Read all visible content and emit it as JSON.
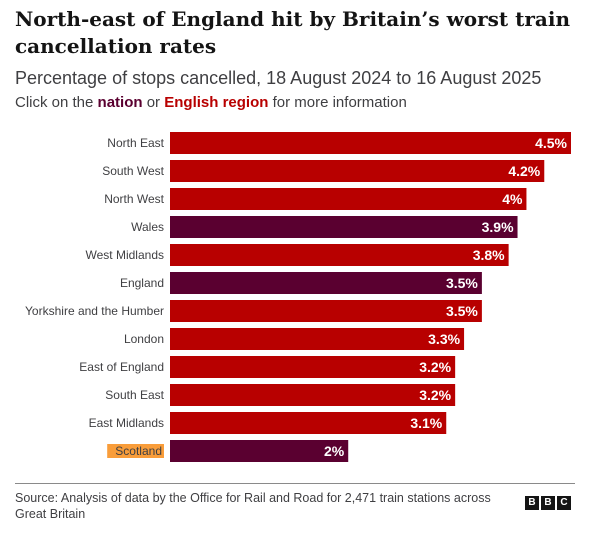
{
  "header": {
    "title": "North-east of England hit by Britain’s worst train cancellation rates",
    "subtitle": "Percentage of stops cancelled, 18 August 2024 to 16 August 2025",
    "instruction": {
      "prefix": "Click on the ",
      "nation": "nation",
      "middle": " or ",
      "region": "English region",
      "suffix": " for more information"
    }
  },
  "colors": {
    "region": "#b80000",
    "nation": "#5a0030",
    "highlight": "#f99d3a"
  },
  "chart_data": {
    "type": "bar",
    "orientation": "horizontal",
    "categories": [
      "North East",
      "South West",
      "North West",
      "Wales",
      "West Midlands",
      "England",
      "Yorkshire and the Humber",
      "London",
      "East of England",
      "South East",
      "East Midlands",
      "Scotland"
    ],
    "values": [
      4.5,
      4.2,
      4,
      3.9,
      3.8,
      3.5,
      3.5,
      3.3,
      3.2,
      3.2,
      3.1,
      2
    ],
    "value_labels": [
      "4.5%",
      "4.2%",
      "4%",
      "3.9%",
      "3.8%",
      "3.5%",
      "3.5%",
      "3.3%",
      "3.2%",
      "3.2%",
      "3.1%",
      "2%"
    ],
    "kinds": [
      "region",
      "region",
      "region",
      "nation",
      "region",
      "nation",
      "region",
      "region",
      "region",
      "region",
      "region",
      "nation"
    ],
    "highlighted": "Scotland",
    "xlim": [
      0,
      4.5
    ],
    "grid": false,
    "legend": "none"
  },
  "footer": {
    "source": "Source: Analysis of data by the Office for Rail and Road for 2,471 train stations across Great Britain",
    "logo_letters": [
      "B",
      "B",
      "C"
    ]
  }
}
